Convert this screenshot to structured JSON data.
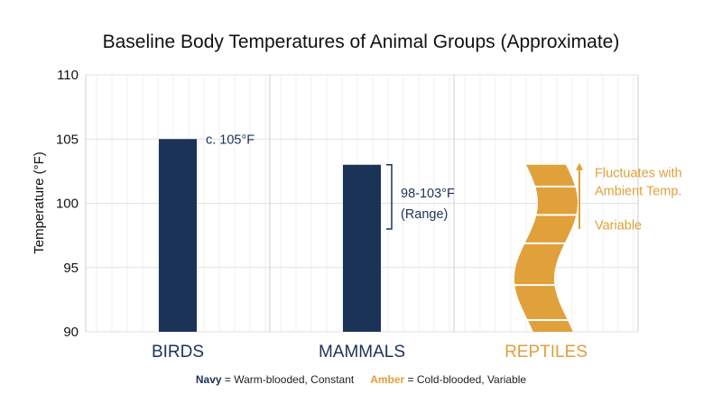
{
  "colors": {
    "navy": "#1c3358",
    "amber": "#e0a03a",
    "grid": "#e2e2e2",
    "axis": "#cfcfcf"
  },
  "chart_data": {
    "type": "bar",
    "title": "Baseline Body Temperatures of Animal Groups (Approximate)",
    "xlabel": "",
    "ylabel": "Temperature (°F)",
    "ylim": [
      90,
      110
    ],
    "yticks": [
      "90",
      "95",
      "100",
      "105",
      "110"
    ],
    "grid": true,
    "categories": [
      "BIRDS",
      "MAMMALS",
      "REPTILES"
    ],
    "values": [
      105,
      103,
      103
    ],
    "category_colors": [
      "navy",
      "navy",
      "amber"
    ],
    "annotations": {
      "birds": "c. 105°F",
      "mammals_line1": "98-103°F",
      "mammals_line2": "(Range)",
      "reptiles_line1": "Fluctuates with",
      "reptiles_line2": "Ambient Temp.",
      "reptiles_line3": "Variable"
    },
    "mammals_range": [
      98,
      103
    ],
    "reptiles_style": "wavy",
    "legend": {
      "items": [
        {
          "key": "Navy",
          "text": " = Warm-blooded, Constant",
          "color": "navy"
        },
        {
          "key": "Amber",
          "text": " = Cold-blooded, Variable",
          "color": "amber"
        }
      ],
      "placement": "bottom-center"
    }
  }
}
